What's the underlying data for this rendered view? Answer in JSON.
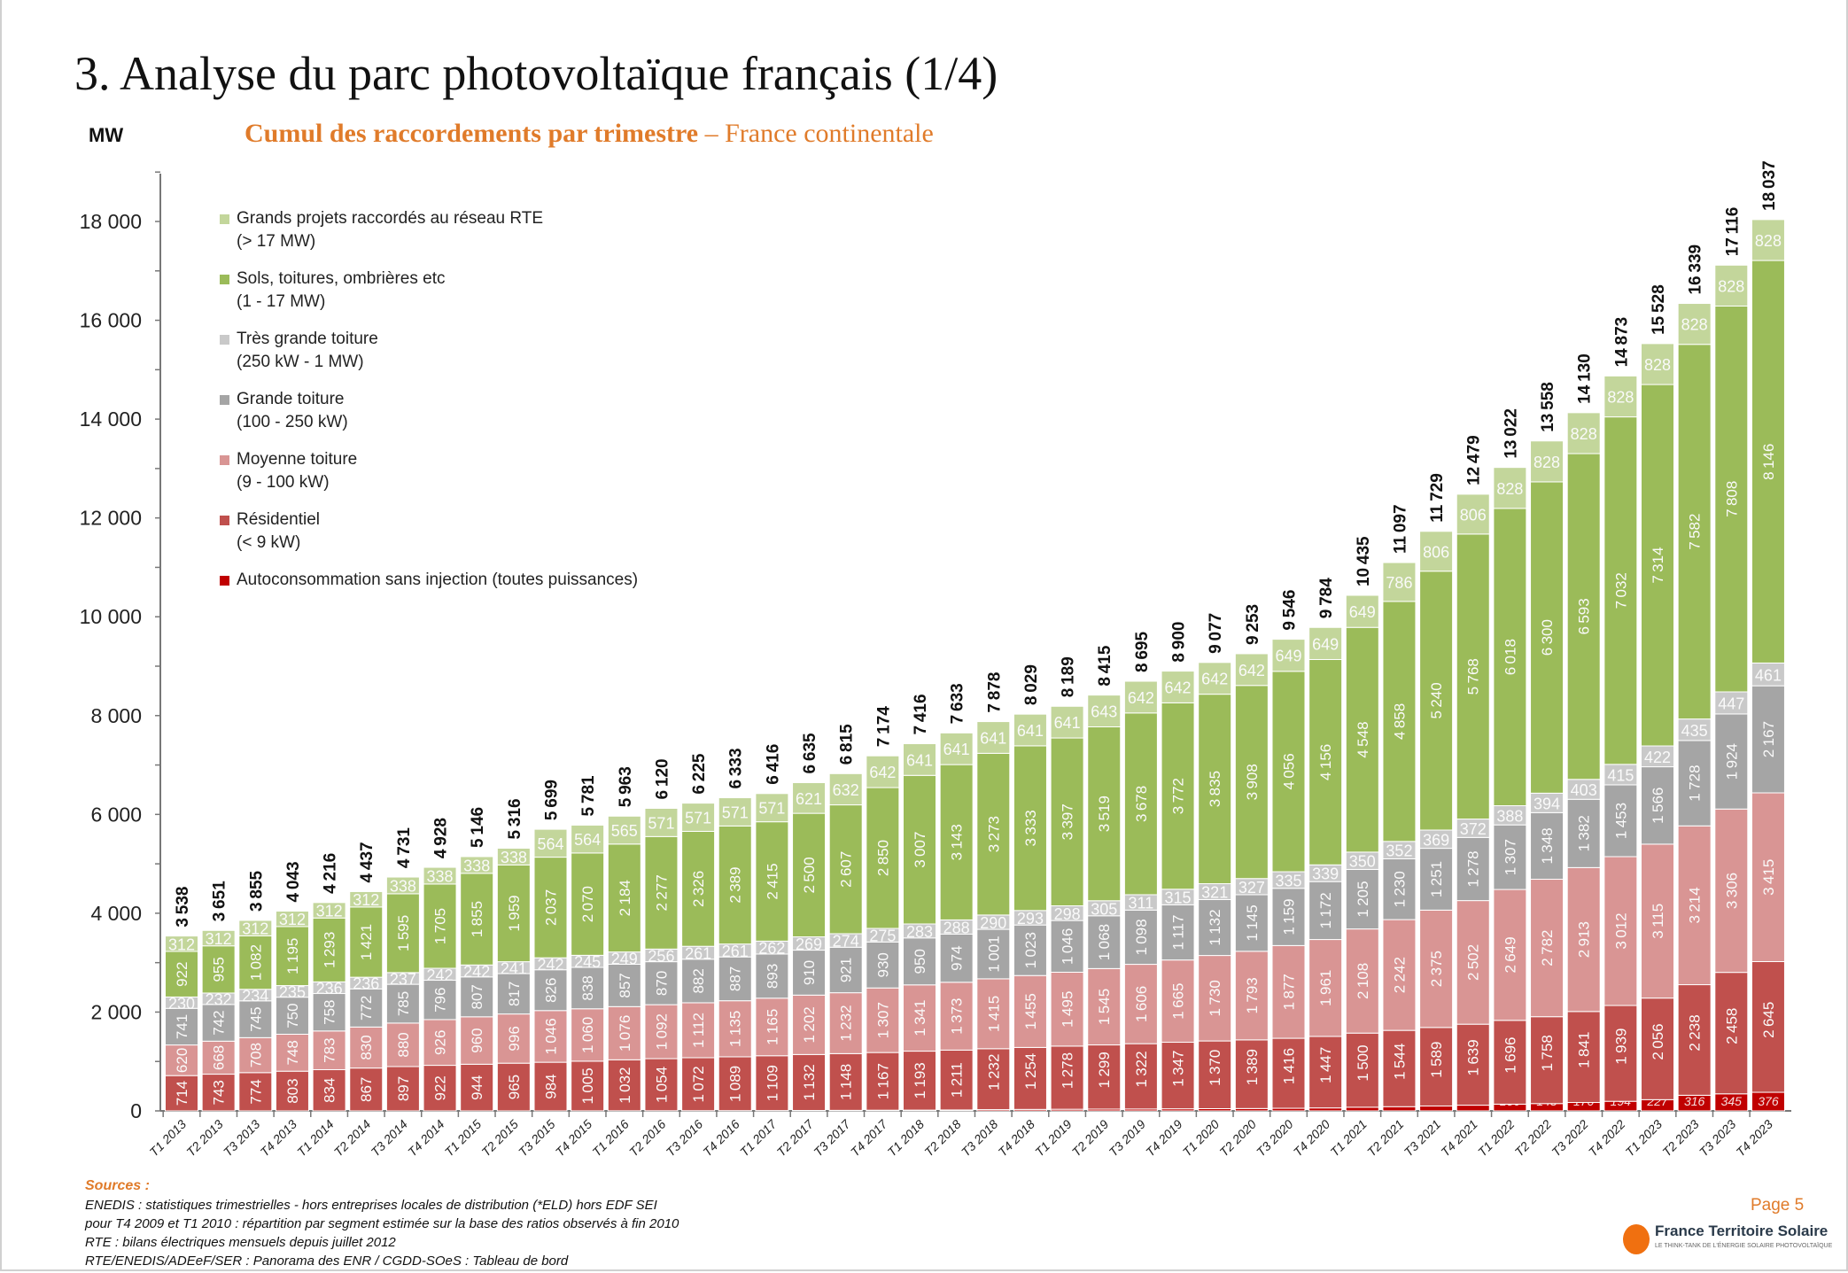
{
  "header": {
    "title": "3. Analyse du parc photovoltaïque français (1/4)",
    "unit": "MW",
    "subtitle_bold": "Cumul des raccordements par trimestre",
    "subtitle_rest": " – France continentale"
  },
  "chart_data": {
    "type": "bar",
    "stacked": true,
    "title": "Cumul des raccordements par trimestre – France continentale",
    "ylabel": "MW",
    "ylim": [
      0,
      19000
    ],
    "yticks": [
      0,
      2000,
      4000,
      6000,
      8000,
      10000,
      12000,
      14000,
      16000,
      18000
    ],
    "ytick_labels": [
      "0",
      "2 000",
      "4 000",
      "6 000",
      "8 000",
      "10 000",
      "12 000",
      "14 000",
      "16 000",
      "18 000"
    ],
    "legend_position": "top-left",
    "grid": false,
    "categories": [
      "T1 2013",
      "T2 2013",
      "T3 2013",
      "T4 2013",
      "T1 2014",
      "T2 2014",
      "T3 2014",
      "T4 2014",
      "T1 2015",
      "T2 2015",
      "T3 2015",
      "T4 2015",
      "T1 2016",
      "T2 2016",
      "T3 2016",
      "T4 2016",
      "T1 2017",
      "T2 2017",
      "T3 2017",
      "T4 2017",
      "T1 2018",
      "T2 2018",
      "T3 2018",
      "T4 2018",
      "T1 2019",
      "T2 2019",
      "T3 2019",
      "T4 2019",
      "T1 2020",
      "T2 2020",
      "T3 2020",
      "T4 2020",
      "T1 2021",
      "T2 2021",
      "T3 2021",
      "T4 2021",
      "T1 2022",
      "T2 2022",
      "T3 2022",
      "T4 2022",
      "T1 2023",
      "T2 2023",
      "T3 2023",
      "T4 2023"
    ],
    "totals": [
      3538,
      3651,
      3855,
      4043,
      4216,
      4437,
      4731,
      4928,
      5146,
      5316,
      5699,
      5781,
      5963,
      6120,
      6225,
      6333,
      6416,
      6635,
      6815,
      7174,
      7416,
      7633,
      7878,
      8029,
      8189,
      8415,
      8695,
      8900,
      9077,
      9253,
      9546,
      9784,
      10435,
      11097,
      11729,
      12479,
      13022,
      13558,
      14130,
      14873,
      15528,
      16339,
      17116,
      18037
    ],
    "series": [
      {
        "name": "Autoconsommation sans injection (toutes puissances)",
        "range": "",
        "color": "#c00000",
        "label_style": "italic",
        "values": [
          0,
          0,
          0,
          0,
          0,
          0,
          0,
          0,
          0,
          0,
          0,
          1,
          2,
          3,
          4,
          5,
          7,
          9,
          11,
          14,
          16,
          19,
          26,
          30,
          33,
          36,
          38,
          42,
          45,
          48,
          53,
          60,
          74,
          85,
          99,
          115,
          136,
          148,
          170,
          194,
          227,
          316,
          345,
          376
        ]
      },
      {
        "name": "Résidentiel",
        "range": "(< 9 kW)",
        "color": "#c0504d",
        "label_style": "vertical",
        "values": [
          714,
          743,
          774,
          803,
          834,
          867,
          897,
          922,
          944,
          965,
          984,
          1005,
          1032,
          1054,
          1072,
          1089,
          1109,
          1132,
          1148,
          1167,
          1193,
          1211,
          1232,
          1254,
          1278,
          1299,
          1322,
          1347,
          1370,
          1389,
          1416,
          1447,
          1500,
          1544,
          1589,
          1639,
          1696,
          1758,
          1841,
          1939,
          2056,
          2238,
          2458,
          2645
        ]
      },
      {
        "name": "Moyenne toiture",
        "range": "(9 - 100 kW)",
        "color": "#d99594",
        "label_style": "vertical",
        "values": [
          620,
          668,
          708,
          748,
          783,
          830,
          880,
          926,
          960,
          996,
          1046,
          1060,
          1076,
          1092,
          1112,
          1135,
          1165,
          1202,
          1232,
          1307,
          1341,
          1373,
          1415,
          1455,
          1495,
          1545,
          1606,
          1665,
          1730,
          1793,
          1877,
          1961,
          2108,
          2242,
          2375,
          2502,
          2649,
          2782,
          2913,
          3012,
          3115,
          3214,
          3306,
          3415
        ]
      },
      {
        "name": "Grande toiture",
        "range": "(100 - 250 kW)",
        "color": "#a5a5a5",
        "label_style": "vertical",
        "values": [
          741,
          742,
          745,
          750,
          758,
          772,
          785,
          796,
          807,
          817,
          826,
          838,
          857,
          870,
          882,
          887,
          893,
          910,
          921,
          930,
          950,
          974,
          1001,
          1023,
          1046,
          1068,
          1098,
          1117,
          1132,
          1145,
          1159,
          1172,
          1205,
          1230,
          1251,
          1278,
          1307,
          1348,
          1382,
          1453,
          1566,
          1728,
          1924,
          2167
        ]
      },
      {
        "name": "Très grande toiture",
        "range": "(250 kW - 1 MW)",
        "color": "#c9c9c9",
        "label_style": "horizontal",
        "values": [
          230,
          232,
          234,
          235,
          236,
          236,
          237,
          242,
          242,
          241,
          242,
          245,
          249,
          256,
          261,
          261,
          262,
          269,
          274,
          275,
          283,
          288,
          290,
          293,
          298,
          305,
          311,
          315,
          321,
          327,
          335,
          339,
          350,
          352,
          369,
          372,
          388,
          394,
          403,
          415,
          422,
          435,
          447,
          461
        ]
      },
      {
        "name": "Sols, toitures, ombrières etc",
        "range": "(1 - 17 MW)",
        "color": "#9bbb59",
        "label_style": "vertical",
        "values": [
          922,
          955,
          1082,
          1195,
          1293,
          1421,
          1595,
          1705,
          1855,
          1959,
          2037,
          2070,
          2184,
          2277,
          2326,
          2389,
          2415,
          2500,
          2607,
          2850,
          3007,
          3143,
          3273,
          3333,
          3397,
          3519,
          3678,
          3772,
          3835,
          3908,
          4056,
          4156,
          4548,
          4858,
          5240,
          5768,
          6018,
          6300,
          6593,
          7032,
          7314,
          7582,
          7808,
          8146
        ]
      },
      {
        "name": "Grands projets raccordés au réseau RTE",
        "range": "(> 17 MW)",
        "color": "#c3d69b",
        "label_style": "horizontal",
        "values": [
          312,
          312,
          312,
          312,
          312,
          312,
          338,
          338,
          338,
          338,
          564,
          564,
          565,
          571,
          571,
          571,
          571,
          621,
          632,
          642,
          641,
          641,
          641,
          641,
          641,
          643,
          642,
          642,
          642,
          642,
          649,
          649,
          649,
          786,
          806,
          806,
          828,
          828,
          828,
          828,
          828,
          828,
          828,
          828
        ]
      }
    ]
  },
  "footer": {
    "sources_heading": "Sources :",
    "sources": [
      "ENEDIS : statistiques trimestrielles - hors entreprises locales de distribution (*ELD) hors EDF SEI",
      "pour T4 2009 et T1 2010 : répartition par segment estimée sur la base des ratios observés à fin 2010",
      "RTE : bilans électriques mensuels depuis juillet 2012",
      "RTE/ENEDIS/ADEeF/SER : Panorama des ENR /  CGDD-SOeS : Tableau de bord"
    ],
    "page": "Page 5",
    "logo_name": "France Territoire Solaire",
    "logo_tagline": "LE THINK-TANK DE L'ÉNERGIE SOLAIRE PHOTOVOLTAÏQUE",
    "brand_color": "#f07010"
  }
}
